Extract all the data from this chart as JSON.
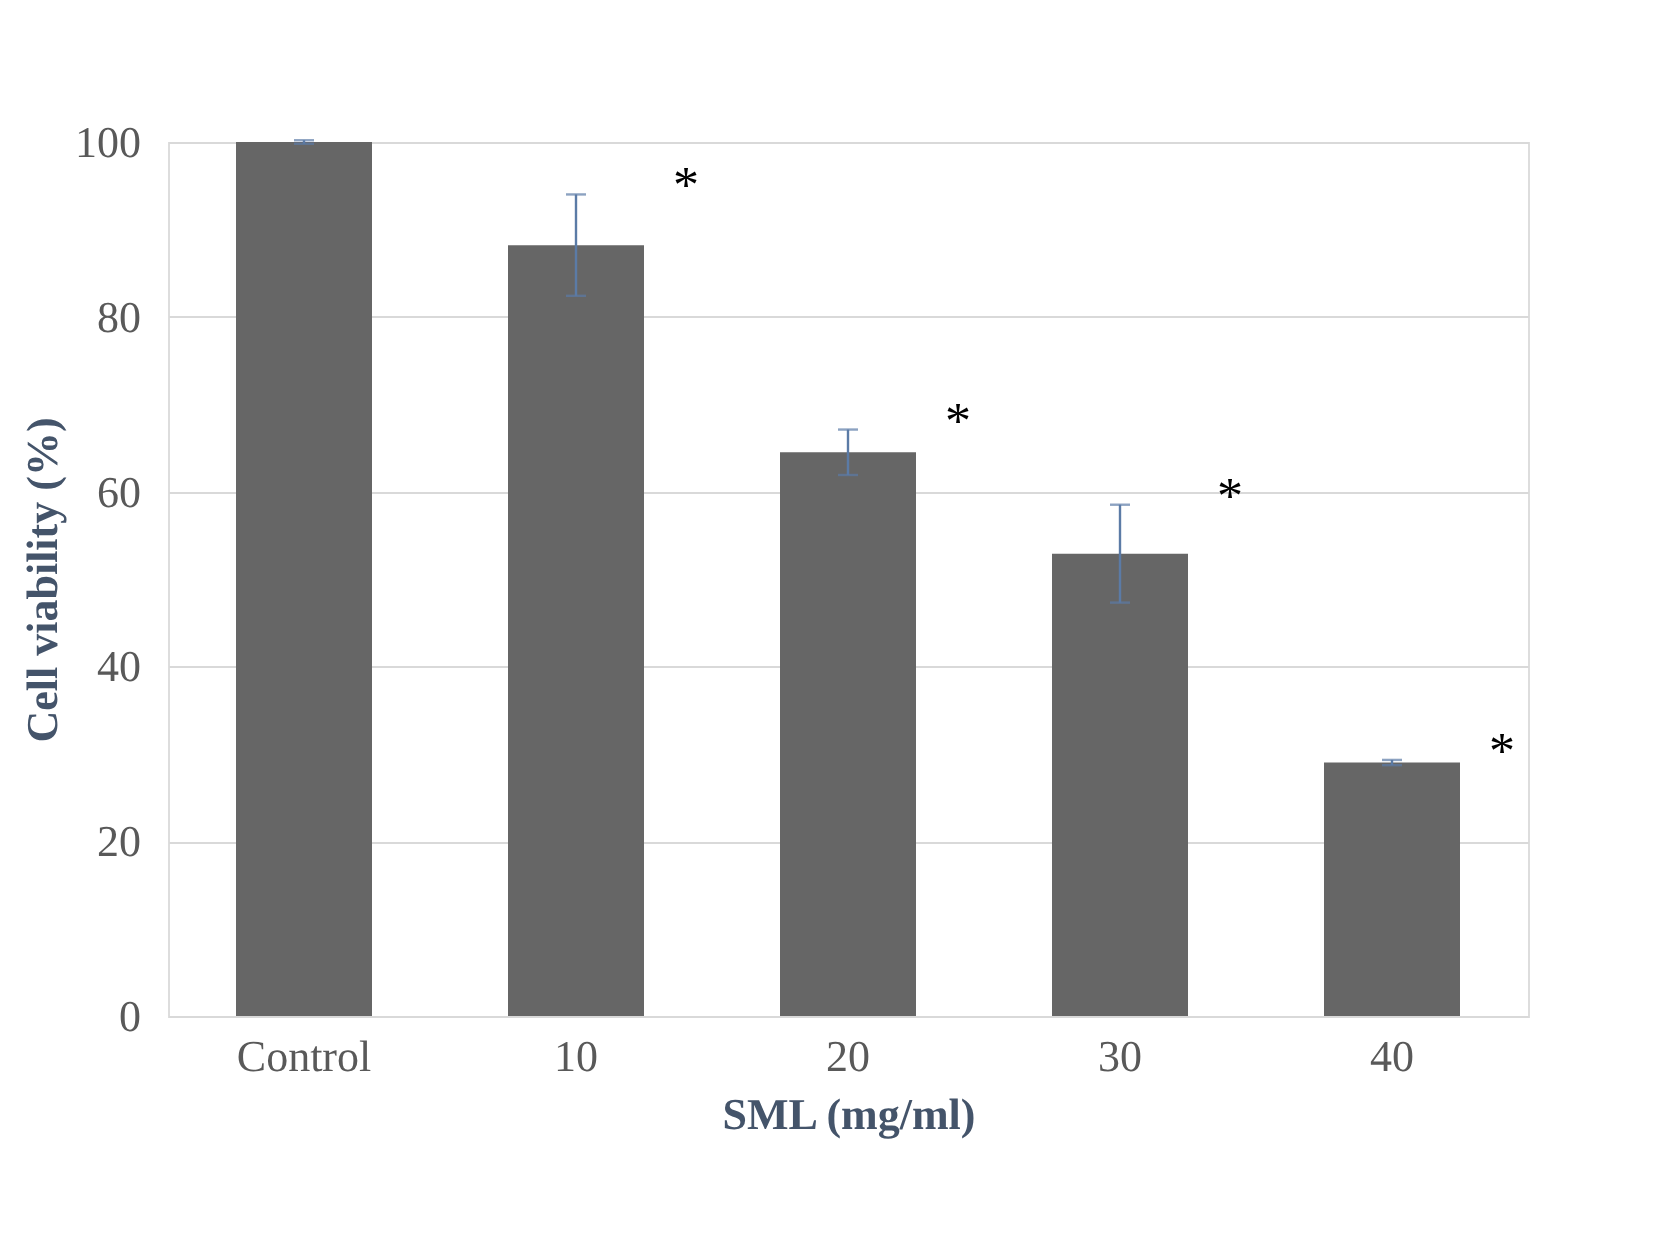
{
  "chart_data": {
    "type": "bar",
    "xlabel": "SML (mg/ml)",
    "ylabel": "Cell viability (%)",
    "categories": [
      "Control",
      "10",
      "20",
      "30",
      "40"
    ],
    "values": [
      100,
      88.2,
      64.5,
      52.9,
      29.0
    ],
    "errors": [
      0.2,
      5.8,
      2.6,
      5.6,
      0.3
    ],
    "color": "#666666",
    "ylim": [
      0,
      100
    ],
    "yticks": [
      0,
      20,
      40,
      60,
      80,
      100
    ],
    "grid": "y",
    "annotations": [
      "*",
      "*",
      "*",
      "*"
    ]
  }
}
